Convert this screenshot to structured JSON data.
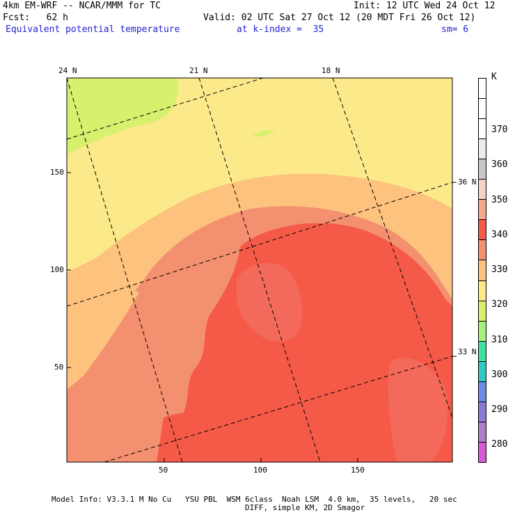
{
  "header": {
    "line1_left": "4km EM-WRF -- NCAR/MMM for TC",
    "line1_right": "Init: 12 UTC Wed 24 Oct 12",
    "line2_left": "Fcst:   62 h",
    "line2_right": "Valid: 02 UTC Sat 27 Oct 12 (20 MDT Fri 26 Oct 12)",
    "field_label": "Equivalent potential temperature",
    "kindex_label": "at k-index =  35",
    "smooth_label": "sm= 6"
  },
  "map": {
    "lat_labels_top": [
      "24 N",
      "21 N",
      "18 N"
    ],
    "lat_labels_right": [
      "36 N",
      "33 N"
    ],
    "y_ticks": [
      "150",
      "100",
      "50"
    ],
    "x_ticks": [
      "50",
      "100",
      "150"
    ]
  },
  "colorbar": {
    "unit": "K",
    "levels": [
      "370",
      "360",
      "350",
      "340",
      "330",
      "320",
      "310",
      "300",
      "290",
      "280"
    ],
    "colors": [
      "#ffffff",
      "#ffffff",
      "#ffffff",
      "#ececec",
      "#c8c8c8",
      "#f5d3c2",
      "#f7a88a",
      "#f55a48",
      "#f39070",
      "#fcc27e",
      "#fbe98a",
      "#d7f06e",
      "#a8f07c",
      "#3fe0a0",
      "#33c8c8",
      "#6a8ee6",
      "#8a7ad8",
      "#b07ec8",
      "#d65ad6"
    ]
  },
  "footer": {
    "line1": "Model Info: V3.3.1 M No Cu   YSU PBL  WSM 6class  Noah LSM  4.0 km,  35 levels,   20 sec",
    "line2": "DIFF, simple KM, 2D Smagor"
  }
}
